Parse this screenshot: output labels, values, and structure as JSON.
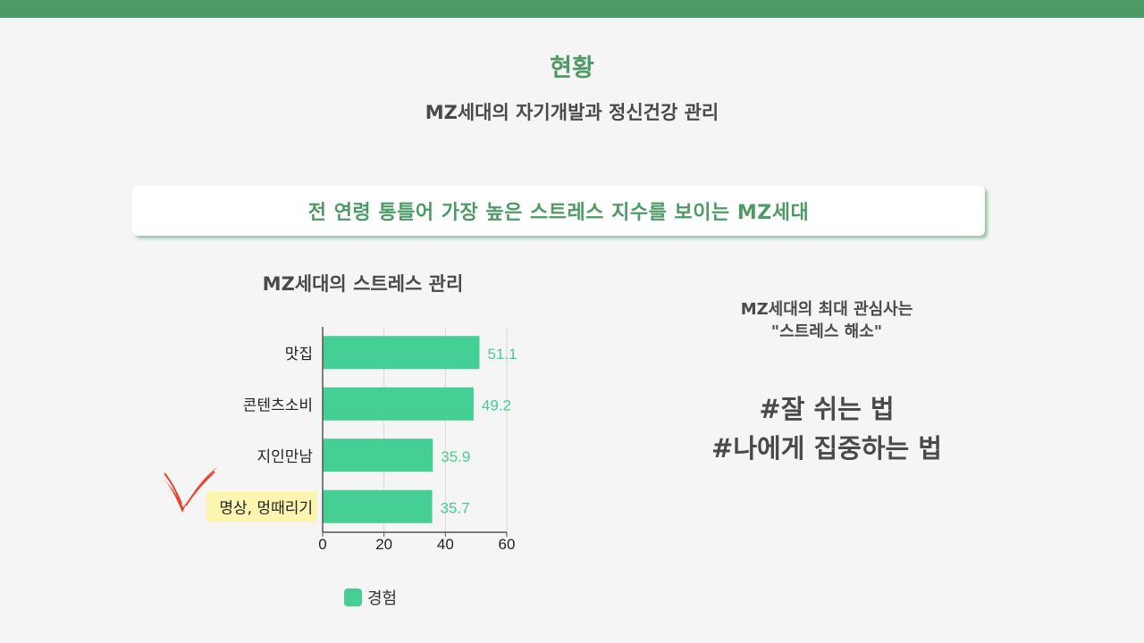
{
  "header": {
    "title": "현황",
    "subtitle": "MZ세대의 자기개발과 정신건강 관리"
  },
  "headline": "전 연령 통틀어 가장 높은 스트레스 지수를 보이는 MZ세대",
  "colors": {
    "accent": "#4e9a66",
    "bar": "#46cf94",
    "highlight": "#fbf5b0",
    "check": "#e8452c"
  },
  "chart_data": {
    "type": "bar",
    "orientation": "horizontal",
    "title": "MZ세대의 스트레스 관리",
    "categories": [
      "맛집",
      "콘텐츠소비",
      "지인만남",
      "명상, 멍때리기"
    ],
    "series": [
      {
        "name": "경험",
        "values": [
          51.1,
          49.2,
          35.9,
          35.7
        ]
      }
    ],
    "xlim": [
      0,
      60
    ],
    "xticks": [
      "0",
      "20",
      "40",
      "60"
    ],
    "grid": true,
    "legend": "bottom",
    "highlighted_category": "명상, 멍때리기"
  },
  "right_panel": {
    "caption_line1": "MZ세대의 최대 관심사는",
    "caption_line2": "\"스트레스 해소\"",
    "hashtag1": "#잘 쉬는 법",
    "hashtag2": "#나에게 집중하는 법"
  }
}
